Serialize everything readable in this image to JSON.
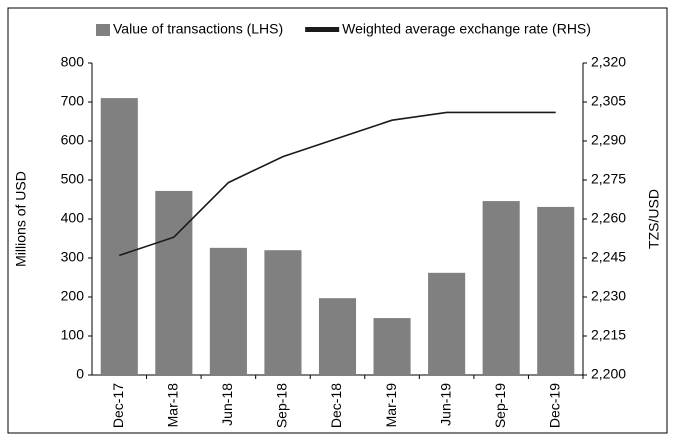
{
  "chart_data": {
    "type": "bar_line",
    "categories": [
      "Dec-17",
      "Mar-18",
      "Jun-18",
      "Sep-18",
      "Dec-18",
      "Mar-19",
      "Jun-19",
      "Sep-19",
      "Dec-19"
    ],
    "series": [
      {
        "name": "Value of transactions (LHS)",
        "type": "bar",
        "color": "#808080",
        "values": [
          710,
          472,
          326,
          320,
          197,
          146,
          262,
          446,
          431
        ]
      },
      {
        "name": "Weighted average exchange rate (RHS)",
        "type": "line",
        "axis": "y2",
        "color": "#1a1a1a",
        "values": [
          2246,
          2253,
          2274,
          2284,
          2291,
          2298,
          2301,
          2301,
          2301
        ]
      }
    ],
    "ylabel": "Millions of  USD",
    "y2label": "TZS/USD",
    "ylim": [
      0,
      800
    ],
    "yticks": [
      0,
      100,
      200,
      300,
      400,
      500,
      600,
      700,
      800
    ],
    "y2lim": [
      2200,
      2320
    ],
    "y2ticks": [
      {
        "value": 2200,
        "label": "2,200"
      },
      {
        "value": 2215,
        "label": "2,215"
      },
      {
        "value": 2230,
        "label": "2,230"
      },
      {
        "value": 2245,
        "label": "2,245"
      },
      {
        "value": 2260,
        "label": "2,260"
      },
      {
        "value": 2275,
        "label": "2,275"
      },
      {
        "value": 2290,
        "label": "2,290"
      },
      {
        "value": 2305,
        "label": "2,305"
      },
      {
        "value": 2320,
        "label": "2,320"
      }
    ],
    "legend": "top",
    "grid": false
  }
}
